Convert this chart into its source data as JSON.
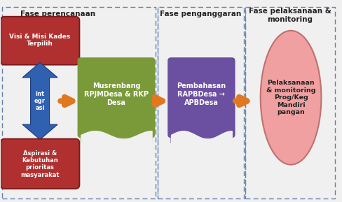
{
  "fig_width": 4.88,
  "fig_height": 2.89,
  "dpi": 100,
  "bg_color": "#f0f0f0",
  "phase1_title": "Fase perencanaan",
  "phase2_title": "Fase penganggaran",
  "phase3_title": "Fase pelaksanaan &\nmonitoring",
  "box1_text": "Visi & Misi Kades\nTerpilih",
  "box1_color": "#b03030",
  "box1_edge": "#7a1a1a",
  "integrasi_text": "int\negr\nasi",
  "arrow_blue_color": "#3060b0",
  "box3_text": "Musrenbang\nRPJMDesa & RKP\nDesa",
  "box3_color": "#7a9a3a",
  "box4_text": "Aspirasi &\nKebutuhan\nprioritas\nmasyarakat",
  "box4_color": "#b03030",
  "box4_edge": "#7a1a1a",
  "box5_text": "Pembahasan\nRAPBDesa →\nAPBDesa",
  "box5_color": "#6b4fa0",
  "ellipse_text": "Pelaksanaan\n& monitoring\nProg/Keg\nMandiri\npangan",
  "ellipse_color": "#f0a0a0",
  "ellipse_edge": "#c07070",
  "arrow_orange": "#e07820",
  "dash_color": "#6080b0",
  "text_dark": "#222222",
  "text_white": "#ffffff"
}
